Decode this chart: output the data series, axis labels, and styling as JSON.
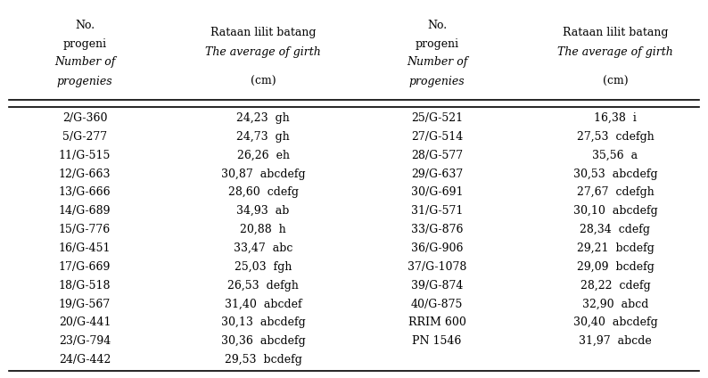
{
  "col_headers": [
    [
      "No.",
      "progeni",
      "Number of",
      "progenies"
    ],
    [
      "Rataan lilit batang",
      "The average of girth",
      "(cm)"
    ],
    [
      "No.",
      "progeni",
      "Number of",
      "progenies"
    ],
    [
      "Rataan lilit batang",
      "The average of girth",
      "(cm)"
    ]
  ],
  "header_italic": [
    [
      false,
      false,
      true,
      true
    ],
    [
      false,
      true,
      false
    ],
    [
      false,
      false,
      true,
      true
    ],
    [
      false,
      true,
      false
    ]
  ],
  "left_data": [
    [
      "2/G-360",
      "24,23  gh"
    ],
    [
      "5/G-277",
      "24,73  gh"
    ],
    [
      "11/G-515",
      "26,26  eh"
    ],
    [
      "12/G-663",
      "30,87  abcdefg"
    ],
    [
      "13/G-666",
      "28,60  cdefg"
    ],
    [
      "14/G-689",
      "34,93  ab"
    ],
    [
      "15/G-776",
      "20,88  h"
    ],
    [
      "16/G-451",
      "33,47  abc"
    ],
    [
      "17/G-669",
      "25,03  fgh"
    ],
    [
      "18/G-518",
      "26,53  defgh"
    ],
    [
      "19/G-567",
      "31,40  abcdef"
    ],
    [
      "20/G-441",
      "30,13  abcdefg"
    ],
    [
      "23/G-794",
      "30,36  abcdefg"
    ],
    [
      "24/G-442",
      "29,53  bcdefg"
    ]
  ],
  "right_data": [
    [
      "25/G-521",
      "16,38  i"
    ],
    [
      "27/G-514",
      "27,53  cdefgh"
    ],
    [
      "28/G-577",
      "35,56  a"
    ],
    [
      "29/G-637",
      "30,53  abcdefg"
    ],
    [
      "30/G-691",
      "27,67  cdefgh"
    ],
    [
      "31/G-571",
      "30,10  abcdefg"
    ],
    [
      "33/G-876",
      "28,34  cdefg"
    ],
    [
      "36/G-906",
      "29,21  bcdefg"
    ],
    [
      "37/G-1078",
      "29,09  bcdefg"
    ],
    [
      "39/G-874",
      "28,22  cdefg"
    ],
    [
      "40/G-875",
      "32,90  abcd"
    ],
    [
      "RRIM 600",
      "30,40  abcdefg"
    ],
    [
      "PN 1546",
      "31,97  abcde"
    ],
    [
      "",
      ""
    ]
  ],
  "bg_color": "white",
  "text_color": "black",
  "font_size": 9.0,
  "header_font_size": 9.0
}
